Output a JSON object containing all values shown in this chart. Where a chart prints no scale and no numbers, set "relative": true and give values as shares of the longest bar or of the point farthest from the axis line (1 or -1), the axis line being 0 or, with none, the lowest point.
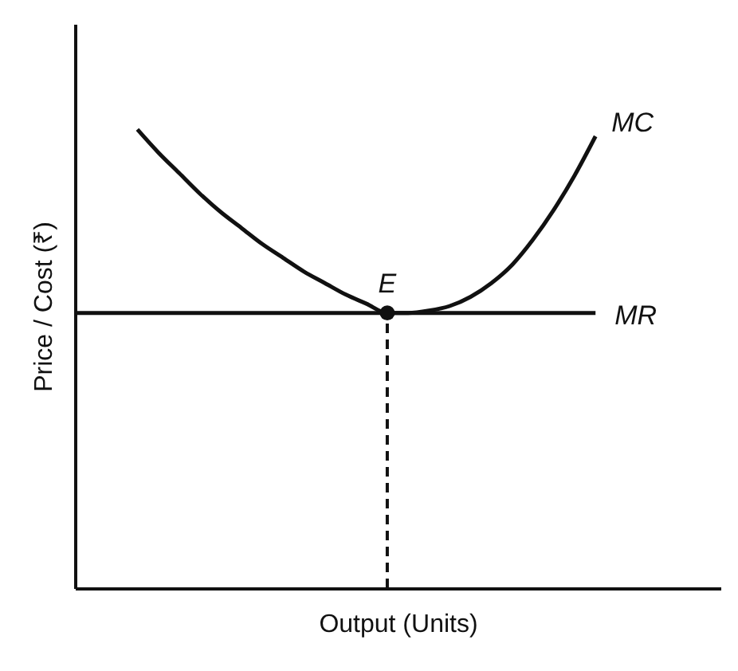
{
  "chart_data": {
    "type": "line",
    "relative": true,
    "xlabel": "Output (Units)",
    "ylabel": "Price / Cost (₹)",
    "categories": [
      null,
      null,
      null,
      null,
      null,
      null,
      null,
      null,
      null,
      null,
      null,
      null,
      null,
      null,
      null,
      null,
      null,
      null,
      null,
      null,
      null,
      null,
      null,
      null,
      null,
      null,
      null,
      null,
      null,
      null,
      null,
      null
    ],
    "series": [
      {
        "name": "MC",
        "color": "#111111",
        "values": [
          null,
          null,
          null,
          1.0,
          0.95,
          0.905,
          0.86,
          0.82,
          0.785,
          0.75,
          0.72,
          0.69,
          0.665,
          0.64,
          0.62,
          0.6,
          0.6,
          0.605,
          0.615,
          0.635,
          0.665,
          0.705,
          0.76,
          0.825,
          0.9,
          0.985,
          null,
          null,
          null,
          null,
          null,
          null
        ]
      },
      {
        "name": "MR",
        "color": "#111111",
        "values": [
          0.6,
          0.6,
          0.6,
          0.6,
          0.6,
          0.6,
          0.6,
          0.6,
          0.6,
          0.6,
          0.6,
          0.6,
          0.6,
          0.6,
          0.6,
          0.6,
          0.6,
          0.6,
          0.6,
          0.6,
          0.6,
          0.6,
          0.6,
          0.6,
          0.6,
          0.6,
          null,
          null,
          null,
          null,
          null,
          null
        ]
      }
    ],
    "annotations": [
      {
        "text": "E",
        "y": 0.6
      }
    ],
    "marker": "none",
    "line_style": "solid",
    "grid": false,
    "tick_labels": false
  }
}
